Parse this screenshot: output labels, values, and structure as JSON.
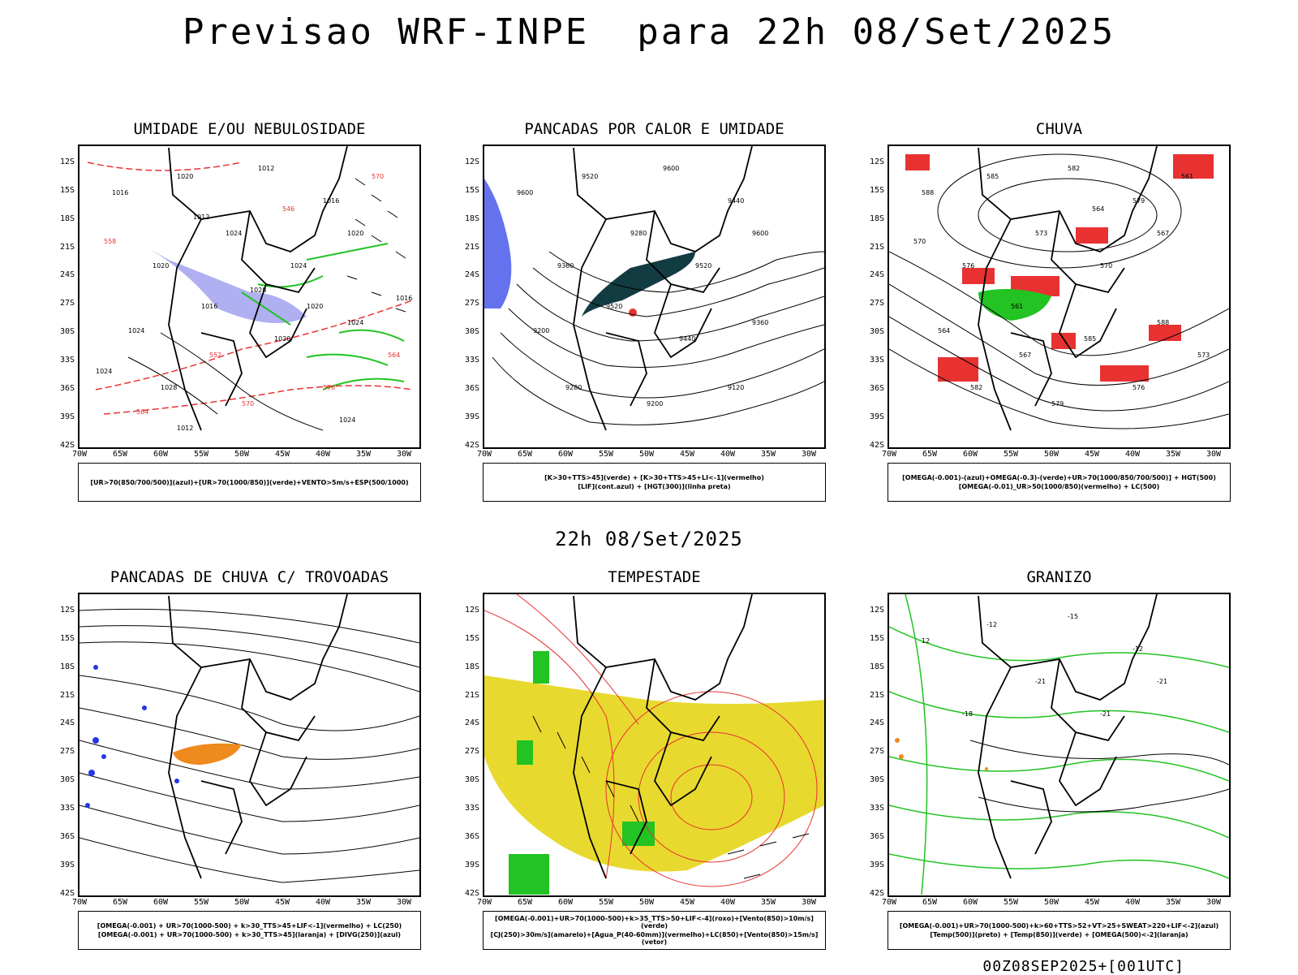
{
  "header": {
    "title": "Previsao WRF-INPE  para 22h 08/Set/2025",
    "subtitle": "22h 08/Set/2025",
    "footer": "00Z08SEP2025+[001UTC]"
  },
  "axes": {
    "lat_labels": [
      "12S",
      "15S",
      "18S",
      "21S",
      "24S",
      "27S",
      "30S",
      "33S",
      "36S",
      "39S",
      "42S"
    ],
    "lon_labels": [
      "70W",
      "65W",
      "60W",
      "55W",
      "50W",
      "45W",
      "40W",
      "35W",
      "30W"
    ]
  },
  "panels": [
    {
      "title": "UMIDADE E/OU NEBULOSIDADE",
      "legend": [
        "[UR>70(850/700/500)](azul)+[UR>70(1000/850)](verde)+VENTO>5m/s+ESP(500/1000)"
      ],
      "contour_labels": [
        "1016",
        "1020",
        "1012",
        "1016",
        "1020",
        "1024",
        "1024",
        "1020",
        "1024",
        "1016",
        "1020",
        "1024",
        "1028",
        "570",
        "576",
        "564",
        "558",
        "552",
        "546",
        "570",
        "564",
        "1012",
        "1020",
        "1016",
        "1024",
        "1028",
        "1024",
        "1012"
      ]
    },
    {
      "title": "PANCADAS POR CALOR E UMIDADE",
      "legend": [
        "[K>30+TTS>45](verde) + [K>30+TTS>45+LI<-1](vermelho)",
        "[LIF](cont.azul) + [HGT(300)](linha preta)"
      ],
      "contour_labels": [
        "9600",
        "9520",
        "9600",
        "9440",
        "9360",
        "9280",
        "9520",
        "9600",
        "9200",
        "9520",
        "9440",
        "9360",
        "9280",
        "9200",
        "9120"
      ]
    },
    {
      "title": "CHUVA",
      "legend": [
        "[OMEGA(-0.001)-(azul)+OMEGA(-0.3)-(verde)+UR>70(1000/850/700/500)] + HGT(500)",
        "[OMEGA(-0.01)_UR>50(1000/850)(vermelho) + LC(500)"
      ],
      "contour_labels": [
        "588",
        "585",
        "582",
        "579",
        "576",
        "573",
        "570",
        "567",
        "564",
        "561",
        "585",
        "588",
        "582",
        "579",
        "576",
        "573",
        "570",
        "567",
        "564",
        "561"
      ]
    },
    {
      "title": "PANCADAS DE CHUVA C/ TROVOADAS",
      "legend": [
        "[OMEGA(-0.001) + UR>70(1000-500) + k>30_TTS>45+LIF<-1](vermelho) + LC(250)",
        "[OMEGA(-0.001) + UR>70(1000-500) + k>30_TTS>45](laranja) + [DIVG(250)](azul)"
      ],
      "contour_labels": []
    },
    {
      "title": "TEMPESTADE",
      "legend": [
        "[OMEGA(-0.001)+UR>70(1000-500)+k>35_TTS>50+LIF<-4](roxo)+[Vento(850)>10m/s](verde)",
        "[CJ(250)>30m/s](amarelo)+[Agua_P(40-60mm)](vermelho)+LC(850)+[Vento(850)>15m/s](vetor)"
      ],
      "contour_labels": []
    },
    {
      "title": "GRANIZO",
      "legend": [
        "[OMEGA(-0.001)+UR>70(1000-500)+k>60+TTS>52+VT>25+SWEAT>220+LIF<-2](azul)",
        "[Temp(500)](preto) + [Temp(850)](verde) + [OMEGA(500)<-2](laranja)"
      ],
      "contour_labels": [
        "12",
        "-12",
        "-15",
        "-12",
        "-18",
        "-21",
        "-21",
        "-21"
      ]
    }
  ],
  "colors": {
    "background": "#ffffff",
    "lines": "#000000",
    "green": "#22c322",
    "red": "#e83232",
    "blue": "#2436e6",
    "lavender": "#a6a6f0",
    "yellow": "#e8d92e",
    "orange": "#ee8a1e",
    "darkteal": "#123c42"
  }
}
